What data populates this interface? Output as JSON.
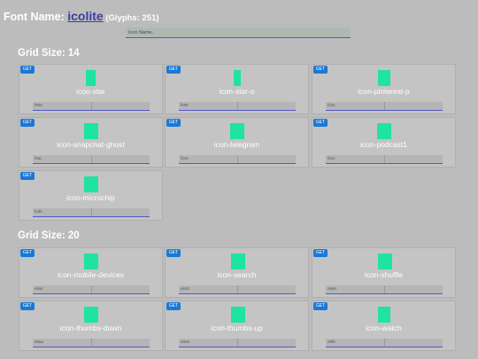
{
  "header": {
    "prefix": "Font Name: ",
    "font_name": "icolite",
    "glyph_count": " (Glyphs: 251)"
  },
  "search": {
    "placeholder": "Icon Name.."
  },
  "button_label": "GET",
  "groups": [
    {
      "title": "Grid Size: 14",
      "icons": [
        {
          "name": "icon-star",
          "code": "f005"
        },
        {
          "name": "icon-star-o",
          "code": "f006"
        },
        {
          "name": "icon-pinterest-p",
          "code": "f231"
        },
        {
          "name": "icon-snapchat-ghost",
          "code": "f2ac"
        },
        {
          "name": "icon-telegram",
          "code": "f2c6"
        },
        {
          "name": "icon-podcast1",
          "code": "f2ce"
        },
        {
          "name": "icon-microchip",
          "code": "f2db"
        }
      ]
    },
    {
      "title": "Grid Size: 20",
      "icons": [
        {
          "name": "icon-mobile-devices",
          "code": "e9ac"
        },
        {
          "name": "icon-search",
          "code": "e610"
        },
        {
          "name": "icon-shuffle",
          "code": "e9a4"
        },
        {
          "name": "icon-thumbs-down",
          "code": "e9aa"
        },
        {
          "name": "icon-thumbs-up",
          "code": "e9a9"
        },
        {
          "name": "icon-watch",
          "code": "e9f6"
        }
      ]
    }
  ],
  "colors": {
    "background": "#bcbcbc",
    "card": "#c4c4c4",
    "get_button": "#1a78d6",
    "glyph": "#1fe3a0",
    "accent_line": "#5557c8",
    "link": "#3c3ca4"
  }
}
